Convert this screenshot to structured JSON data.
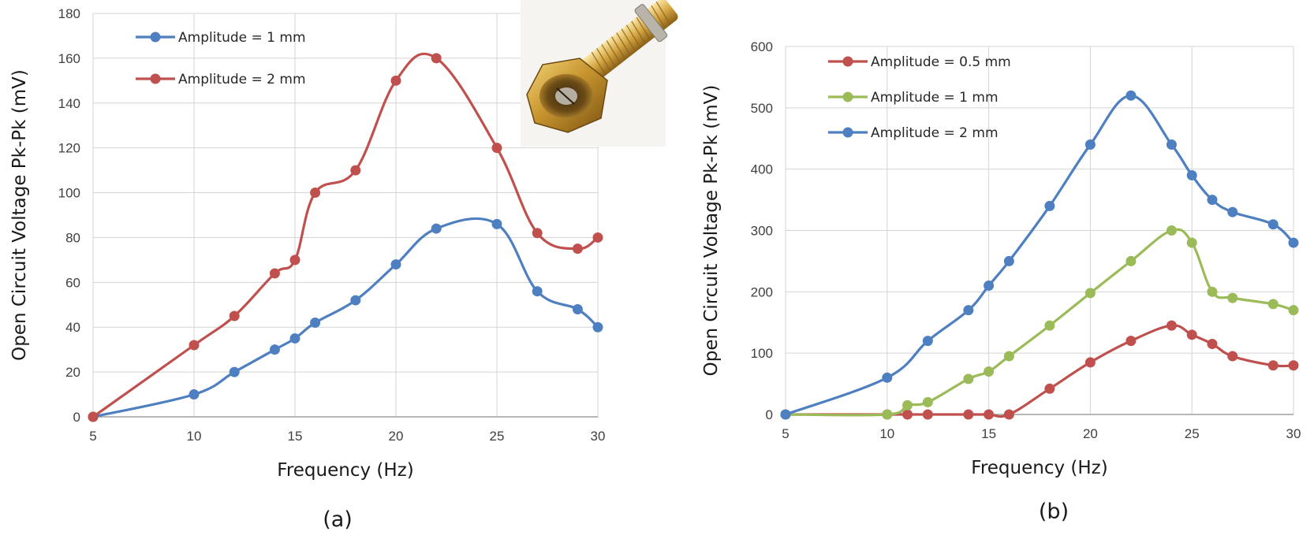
{
  "chart_data": [
    {
      "type": "line",
      "panel_label": "(a)",
      "xlabel": "Frequency (Hz)",
      "ylabel": "Open Circuit Voltage Pk-Pk  (mV)",
      "xlim": [
        5,
        30
      ],
      "ylim": [
        0,
        180
      ],
      "xticks": [
        5,
        10,
        15,
        20,
        25,
        30
      ],
      "yticks": [
        0,
        20,
        40,
        60,
        80,
        100,
        120,
        140,
        160,
        180
      ],
      "grid": true,
      "legend_position": "top-left",
      "inset_image": "brass threaded sensor photo",
      "series": [
        {
          "name": "Amplitude = 1 mm",
          "color": "#4e7fc0",
          "x": [
            5,
            10,
            12,
            14,
            15,
            16,
            18,
            20,
            22,
            25,
            27,
            29,
            30
          ],
          "y": [
            0,
            10,
            20,
            30,
            35,
            42,
            52,
            68,
            84,
            86,
            56,
            48,
            40
          ]
        },
        {
          "name": "Amplitude = 2 mm",
          "color": "#c0504d",
          "x": [
            5,
            10,
            12,
            14,
            15,
            16,
            18,
            20,
            22,
            25,
            27,
            29,
            30
          ],
          "y": [
            0,
            32,
            45,
            64,
            70,
            100,
            110,
            150,
            160,
            120,
            82,
            75,
            80
          ]
        }
      ]
    },
    {
      "type": "line",
      "panel_label": "(b)",
      "xlabel": "Frequency (Hz)",
      "ylabel": "Open Circuit Voltage Pk-Pk (mV)",
      "xlim": [
        5,
        30
      ],
      "ylim": [
        0,
        600
      ],
      "xticks": [
        5,
        10,
        15,
        20,
        25,
        30
      ],
      "yticks": [
        0,
        100,
        200,
        300,
        400,
        500,
        600
      ],
      "grid": true,
      "legend_position": "top-left",
      "series": [
        {
          "name": "Amplitude = 0.5 mm",
          "color": "#c0504d",
          "x": [
            5,
            10,
            11,
            12,
            14,
            15,
            16,
            18,
            20,
            22,
            24,
            25,
            26,
            27,
            29,
            30
          ],
          "y": [
            0,
            0,
            0,
            0,
            0,
            0,
            0,
            42,
            85,
            120,
            145,
            130,
            115,
            95,
            80,
            80
          ]
        },
        {
          "name": "Amplitude = 1 mm",
          "color": "#9bbb59",
          "x": [
            5,
            10,
            11,
            12,
            14,
            15,
            16,
            18,
            20,
            22,
            24,
            25,
            26,
            27,
            29,
            30
          ],
          "y": [
            0,
            0,
            15,
            20,
            58,
            70,
            95,
            145,
            198,
            250,
            300,
            280,
            200,
            190,
            180,
            170
          ]
        },
        {
          "name": "Amplitude = 2 mm",
          "color": "#4e7fc0",
          "x": [
            5,
            10,
            12,
            14,
            15,
            16,
            18,
            20,
            22,
            24,
            25,
            26,
            27,
            29,
            30
          ],
          "y": [
            0,
            60,
            120,
            170,
            210,
            250,
            340,
            440,
            520,
            440,
            390,
            350,
            330,
            310,
            280
          ]
        }
      ]
    }
  ]
}
